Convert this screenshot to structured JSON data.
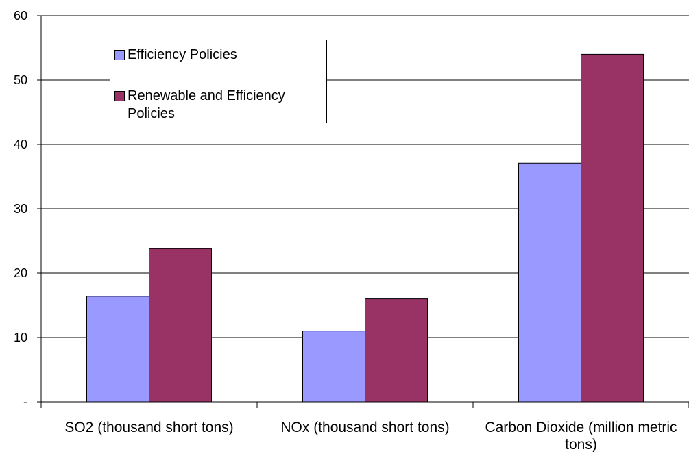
{
  "chart_data": {
    "type": "bar",
    "categories": [
      "SO2 (thousand short tons)",
      "NOx (thousand short tons)",
      "Carbon Dioxide (million metric tons)"
    ],
    "series": [
      {
        "name": "Efficiency Policies",
        "color": "#9999ff",
        "values": [
          16.4,
          11.0,
          37.1
        ]
      },
      {
        "name": "Renewable and Efficiency Policies",
        "color": "#993366",
        "values": [
          23.8,
          16.0,
          54.0
        ]
      }
    ],
    "ylim": [
      0,
      60
    ],
    "yticks": [
      {
        "value": 0,
        "label": "-"
      },
      10,
      20,
      30,
      40,
      50,
      60
    ],
    "grid": true,
    "legend": "top-left"
  }
}
